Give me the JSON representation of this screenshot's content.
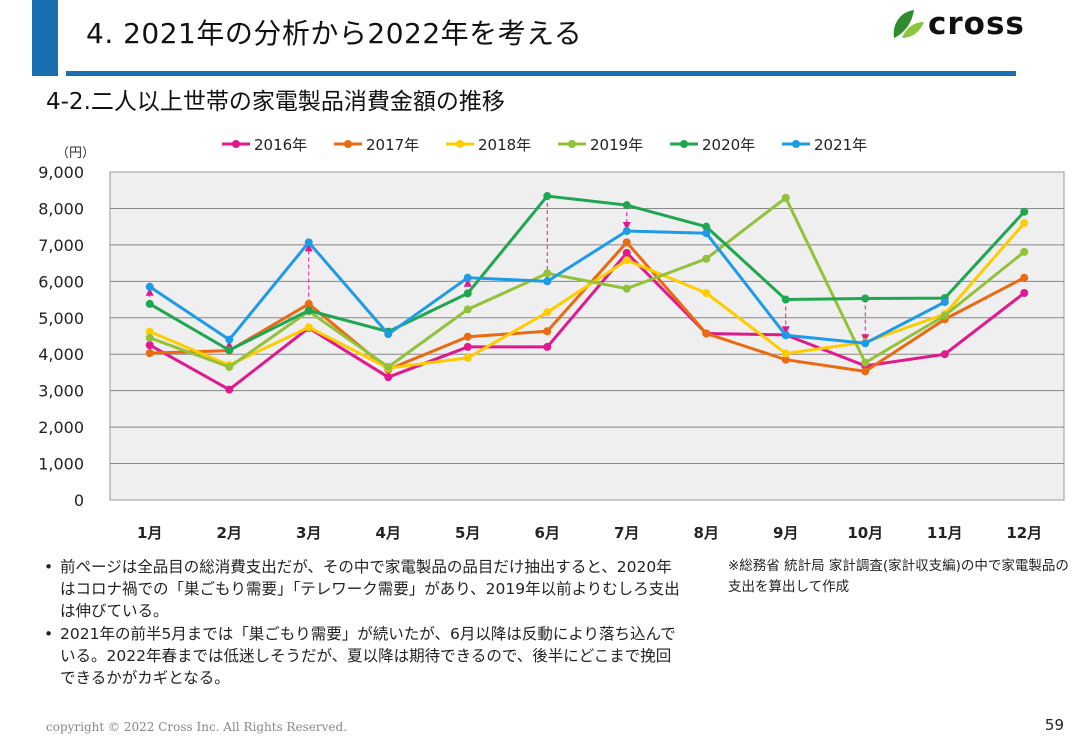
{
  "header": {
    "title": "4. 2021年の分析から2022年を考える",
    "logo_text": "cross",
    "subtitle": "4-2.二人以上世帯の家電製品消費金額の推移"
  },
  "colors": {
    "accent": "#1a6fb0",
    "leaf_dark": "#2e8b2e",
    "leaf_light": "#8cc63f"
  },
  "chart_data": {
    "type": "line",
    "title": "",
    "ylabel": "（円）",
    "xlabel": "",
    "ylim": [
      0,
      9000
    ],
    "yticks": [
      0,
      1000,
      2000,
      3000,
      4000,
      5000,
      6000,
      7000,
      8000,
      9000
    ],
    "ytick_labels": [
      "0",
      "1,000",
      "2,000",
      "3,000",
      "4,000",
      "5,000",
      "6,000",
      "7,000",
      "8,000",
      "9,000"
    ],
    "categories": [
      "1月",
      "2月",
      "3月",
      "4月",
      "5月",
      "6月",
      "7月",
      "8月",
      "9月",
      "10月",
      "11月",
      "12月"
    ],
    "grid": true,
    "legend_position": "top",
    "series": [
      {
        "name": "2016年",
        "color": "#e0198c",
        "values": [
          4250,
          3030,
          4720,
          3370,
          4200,
          4200,
          6780,
          4570,
          4530,
          3680,
          4000,
          5680
        ]
      },
      {
        "name": "2017年",
        "color": "#ea6a12",
        "values": [
          4030,
          4100,
          5380,
          3580,
          4480,
          4630,
          7070,
          4570,
          3850,
          3530,
          4960,
          6100
        ]
      },
      {
        "name": "2018年",
        "color": "#ffcc00",
        "values": [
          4620,
          3700,
          4740,
          3620,
          3900,
          5150,
          6580,
          5680,
          4020,
          4330,
          5100,
          7600
        ]
      },
      {
        "name": "2019年",
        "color": "#92c13a",
        "values": [
          4450,
          3650,
          5180,
          3650,
          5230,
          6220,
          5800,
          6620,
          8290,
          3770,
          5060,
          6810
        ]
      },
      {
        "name": "2020年",
        "color": "#1ea650",
        "values": [
          5380,
          4110,
          5200,
          4620,
          5670,
          8340,
          8090,
          7500,
          5500,
          5530,
          5540,
          7910
        ]
      },
      {
        "name": "2021年",
        "color": "#1e9be6",
        "values": [
          5850,
          4400,
          7070,
          4550,
          6100,
          6000,
          7380,
          7320,
          4520,
          4300,
          5430,
          null
        ]
      }
    ],
    "annotations": [
      {
        "month_index": 0,
        "direction": "up"
      },
      {
        "month_index": 1,
        "direction": "up"
      },
      {
        "month_index": 2,
        "direction": "up"
      },
      {
        "month_index": 4,
        "direction": "up"
      },
      {
        "month_index": 5,
        "direction": "down"
      },
      {
        "month_index": 6,
        "direction": "down"
      },
      {
        "month_index": 8,
        "direction": "down"
      },
      {
        "month_index": 9,
        "direction": "down"
      }
    ]
  },
  "bullets": [
    "前ページは全品目の総消費支出だが、その中で家電製品の品目だけ抽出すると、2020年はコロナ禍での「巣ごもり需要」「テレワーク需要」があり、2019年以前よりむしろ支出は伸びている。",
    "2021年の前半5月までは「巣ごもり需要」が続いたが、6月以降は反動により落ち込んでいる。2022年春までは低迷しそうだが、夏以降は期待できるので、後半にどこまで挽回できるかがカギとなる。"
  ],
  "note": "※総務省 統計局 家計調査(家計収支編)の中で家電製品の支出を算出して作成",
  "footer": {
    "copyright": "copyright © 2022 Cross Inc. All Rights Reserved.",
    "page_number": "59"
  }
}
